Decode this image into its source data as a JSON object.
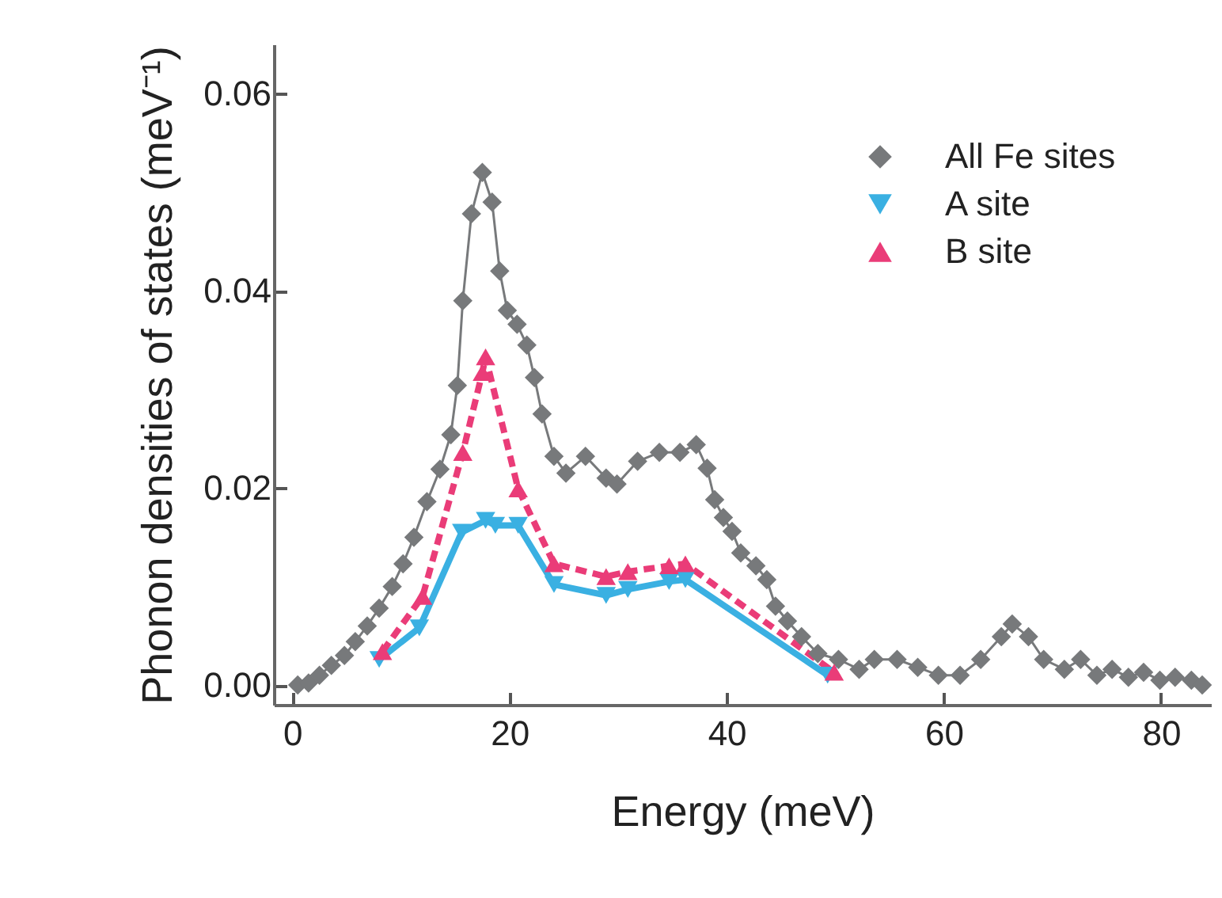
{
  "chart_data": {
    "type": "line",
    "xlabel": "Energy (meV)",
    "ylabel": "Phonon densities of states (meV⁻¹)",
    "xlim": [
      -1.7,
      84.6
    ],
    "ylim": [
      -0.002,
      0.065
    ],
    "xticks": [
      0,
      20,
      40,
      60,
      80
    ],
    "yticks": [
      {
        "value": 0,
        "label": "0.00"
      },
      {
        "value": 0.02,
        "label": "0.02"
      },
      {
        "value": 0.04,
        "label": "0.04"
      },
      {
        "value": 0.06,
        "label": "0.06"
      }
    ],
    "grid": false,
    "legend": "top right",
    "series": [
      {
        "name": "All Fe sites",
        "color": "#77797b",
        "marker": "diamond",
        "line_style": "solid",
        "x": [
          0.5,
          1.5,
          2.5,
          3.6,
          4.8,
          5.8,
          6.9,
          8.0,
          9.2,
          10.2,
          11.2,
          12.4,
          13.6,
          14.6,
          15.2,
          15.7,
          16.5,
          17.5,
          18.4,
          19.1,
          19.8,
          20.7,
          21.6,
          22.3,
          23.0,
          24.1,
          25.2,
          27.0,
          28.9,
          29.9,
          31.8,
          33.8,
          35.7,
          37.2,
          38.2,
          38.9,
          39.7,
          40.5,
          41.3,
          42.7,
          43.7,
          44.5,
          45.6,
          46.9,
          48.4,
          50.3,
          52.2,
          53.6,
          55.7,
          57.6,
          59.5,
          61.5,
          63.4,
          65.3,
          66.3,
          67.8,
          69.2,
          71.1,
          72.6,
          74.1,
          75.5,
          77.0,
          78.4,
          79.9,
          81.3,
          82.8,
          83.8
        ],
        "values": [
          0.0,
          0.0002,
          0.001,
          0.002,
          0.003,
          0.0044,
          0.006,
          0.0078,
          0.01,
          0.0123,
          0.015,
          0.0186,
          0.0219,
          0.0254,
          0.0304,
          0.039,
          0.0478,
          0.052,
          0.049,
          0.042,
          0.038,
          0.0366,
          0.0345,
          0.0312,
          0.0275,
          0.0232,
          0.0215,
          0.0232,
          0.021,
          0.0204,
          0.0227,
          0.0236,
          0.0236,
          0.0244,
          0.022,
          0.0188,
          0.017,
          0.0156,
          0.0134,
          0.0121,
          0.0107,
          0.008,
          0.0065,
          0.0049,
          0.0032,
          0.0026,
          0.0016,
          0.0026,
          0.0026,
          0.0018,
          0.001,
          0.001,
          0.0026,
          0.0049,
          0.0062,
          0.0049,
          0.0026,
          0.0016,
          0.0026,
          0.001,
          0.0016,
          0.0008,
          0.0013,
          0.0005,
          0.0008,
          0.0005,
          0.0
        ]
      },
      {
        "name": "A site",
        "color": "#3ab0e2",
        "marker": "triangle-down",
        "line_style": "solid",
        "x": [
          8.0,
          11.7,
          15.6,
          17.8,
          18.7,
          20.8,
          24.1,
          28.9,
          30.9,
          34.7,
          36.2,
          49.3
        ],
        "values": [
          0.0026,
          0.0058,
          0.0155,
          0.0167,
          0.0162,
          0.0162,
          0.0102,
          0.0091,
          0.0097,
          0.0105,
          0.0107,
          0.001
        ]
      },
      {
        "name": "B site",
        "color": "#ea3c78",
        "marker": "triangle",
        "line_style": "dashed",
        "x": [
          8.3,
          12.0,
          15.7,
          17.5,
          17.8,
          20.8,
          24.1,
          28.9,
          30.9,
          34.7,
          36.2,
          49.9
        ],
        "values": [
          0.0034,
          0.009,
          0.0236,
          0.0317,
          0.0333,
          0.0199,
          0.0123,
          0.011,
          0.0115,
          0.0121,
          0.0123,
          0.0013
        ]
      }
    ]
  }
}
